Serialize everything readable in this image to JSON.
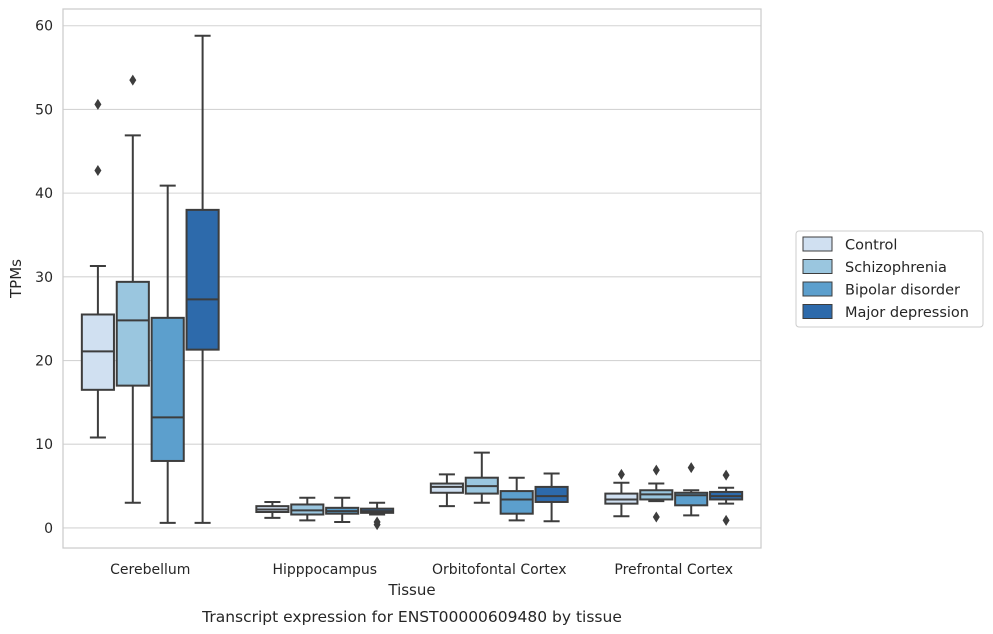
{
  "chart_data": {
    "type": "boxplot",
    "title": "Transcript expression for ENST00000609480 by tissue",
    "xlabel": "Tissue",
    "ylabel": "TPMs",
    "ylim": [
      -2.4,
      62
    ],
    "yticks": [
      0,
      10,
      20,
      30,
      40,
      50,
      60
    ],
    "grid": true,
    "legend_position": "right",
    "categories": [
      "Cerebellum",
      "Hipppocampus",
      "Orbitofontal Cortex",
      "Prefrontal Cortex"
    ],
    "series": [
      {
        "name": "Control",
        "color": "#d0e0f1",
        "boxes": [
          {
            "whislo": 10.8,
            "q1": 16.5,
            "med": 21.1,
            "q3": 25.5,
            "whishi": 31.3,
            "fliers": [
              42.7,
              50.6
            ]
          },
          {
            "whislo": 1.2,
            "q1": 1.9,
            "med": 2.2,
            "q3": 2.6,
            "whishi": 3.1,
            "fliers": []
          },
          {
            "whislo": 2.6,
            "q1": 4.2,
            "med": 4.9,
            "q3": 5.3,
            "whishi": 6.4,
            "fliers": []
          },
          {
            "whislo": 1.4,
            "q1": 2.9,
            "med": 3.4,
            "q3": 4.1,
            "whishi": 5.4,
            "fliers": [
              6.4
            ]
          }
        ]
      },
      {
        "name": "Schizophrenia",
        "color": "#9ac6df",
        "boxes": [
          {
            "whislo": 3.0,
            "q1": 17.0,
            "med": 24.8,
            "q3": 29.4,
            "whishi": 46.9,
            "fliers": [
              53.5
            ]
          },
          {
            "whislo": 0.9,
            "q1": 1.6,
            "med": 2.1,
            "q3": 2.8,
            "whishi": 3.6,
            "fliers": []
          },
          {
            "whislo": 3.0,
            "q1": 4.1,
            "med": 5.0,
            "q3": 6.0,
            "whishi": 9.0,
            "fliers": []
          },
          {
            "whislo": 3.2,
            "q1": 3.4,
            "med": 4.0,
            "q3": 4.5,
            "whishi": 5.3,
            "fliers": [
              1.3,
              6.9
            ]
          }
        ]
      },
      {
        "name": "Bipolar disorder",
        "color": "#5c9fcd",
        "boxes": [
          {
            "whislo": 0.6,
            "q1": 8.0,
            "med": 13.2,
            "q3": 25.1,
            "whishi": 40.9,
            "fliers": []
          },
          {
            "whislo": 0.7,
            "q1": 1.7,
            "med": 2.0,
            "q3": 2.4,
            "whishi": 3.6,
            "fliers": []
          },
          {
            "whislo": 0.9,
            "q1": 1.7,
            "med": 3.4,
            "q3": 4.4,
            "whishi": 6.0,
            "fliers": []
          },
          {
            "whislo": 1.5,
            "q1": 2.7,
            "med": 3.9,
            "q3": 4.2,
            "whishi": 4.5,
            "fliers": [
              7.2
            ]
          }
        ]
      },
      {
        "name": "Major depression",
        "color": "#2d6aab",
        "boxes": [
          {
            "whislo": 0.6,
            "q1": 21.3,
            "med": 27.3,
            "q3": 38.0,
            "whishi": 58.8,
            "fliers": []
          },
          {
            "whislo": 1.6,
            "q1": 1.8,
            "med": 2.0,
            "q3": 2.3,
            "whishi": 3.0,
            "fliers": [
              0.4,
              0.7
            ]
          },
          {
            "whislo": 0.8,
            "q1": 3.1,
            "med": 3.8,
            "q3": 4.9,
            "whishi": 6.5,
            "fliers": []
          },
          {
            "whislo": 2.9,
            "q1": 3.4,
            "med": 3.8,
            "q3": 4.3,
            "whishi": 4.8,
            "fliers": [
              0.9,
              6.3
            ]
          }
        ]
      }
    ]
  }
}
